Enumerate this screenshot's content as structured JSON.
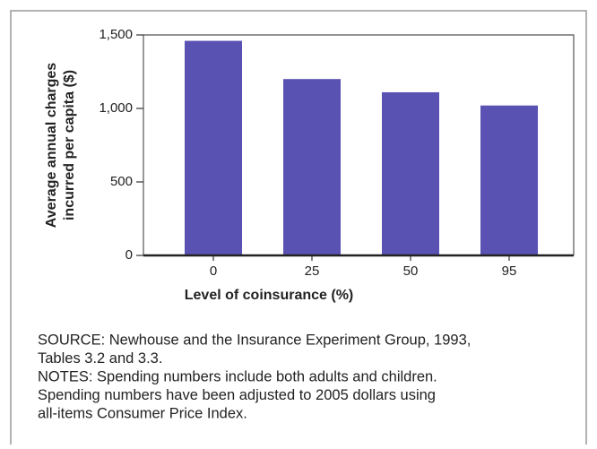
{
  "chart_data": {
    "type": "bar",
    "ylabel": [
      "Average annual charges",
      "incurred per capita ($)"
    ],
    "xlabel": "Level of coinsurance (%)",
    "categories": [
      "0",
      "25",
      "50",
      "95"
    ],
    "values": [
      1460,
      1200,
      1110,
      1020
    ],
    "color": "#5a52b3",
    "ylim": [
      0,
      1500
    ],
    "yticks": [
      0,
      500,
      {
        "value": 1000,
        "label": "1,000"
      },
      {
        "value": 1500,
        "label": "1,500"
      }
    ],
    "notes": [
      "SOURCE: Newhouse and the Insurance Experiment Group, 1993,",
      "Tables 3.2 and 3.3.",
      "NOTES: Spending numbers include both adults and children.",
      "Spending numbers have been adjusted to 2005 dollars using",
      "all-items Consumer Price Index."
    ]
  }
}
